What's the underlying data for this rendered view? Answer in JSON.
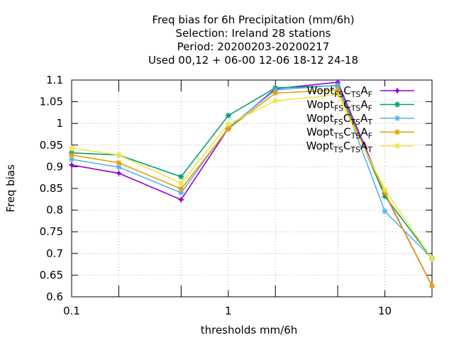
{
  "chart_data": {
    "type": "line",
    "title_lines": [
      "Freq bias  for 6h Precipitation (mm/6h)",
      "Selection: Ireland      28 stations",
      "Period: 20200203-20200217",
      "Used  00,12  + 06-00 12-06 18-12 24-18"
    ],
    "xlabel": "thresholds mm/6h",
    "ylabel": "Freq bias",
    "x_scale": "log",
    "xlim": [
      0.1,
      20
    ],
    "ylim": [
      0.6,
      1.1
    ],
    "x_ticks": [
      {
        "value": 0.1,
        "label": "0.1"
      },
      {
        "value": 1,
        "label": "1"
      },
      {
        "value": 10,
        "label": "10"
      }
    ],
    "x_minor_ticks": [
      0.2,
      0.5,
      2,
      5,
      20
    ],
    "y_ticks": [
      {
        "value": 0.6,
        "label": "0.6"
      },
      {
        "value": 0.65,
        "label": "0.65"
      },
      {
        "value": 0.7,
        "label": "0.7"
      },
      {
        "value": 0.75,
        "label": "0.75"
      },
      {
        "value": 0.8,
        "label": "0.8"
      },
      {
        "value": 0.85,
        "label": "0.85"
      },
      {
        "value": 0.9,
        "label": "0.9"
      },
      {
        "value": 0.95,
        "label": "0.95"
      },
      {
        "value": 1,
        "label": "1"
      },
      {
        "value": 1.05,
        "label": "1.05"
      },
      {
        "value": 1.1,
        "label": "1.1"
      }
    ],
    "grid": true,
    "legend_position": "top-right",
    "x": [
      0.1,
      0.2,
      0.5,
      1,
      2,
      5,
      10,
      20
    ],
    "series": [
      {
        "legend": {
          "base": "Wopt",
          "parts": [
            [
              "FS",
              "sub"
            ],
            [
              "C",
              "big"
            ],
            [
              "TS",
              "sub"
            ],
            [
              "A",
              "big"
            ],
            [
              "F",
              "sub"
            ]
          ]
        },
        "color": "#9400d3",
        "marker": "plus",
        "values": [
          0.904,
          0.885,
          0.824,
          0.988,
          1.08,
          1.095,
          0.838,
          0.625
        ]
      },
      {
        "legend": {
          "base": "Wopt",
          "parts": [
            [
              "FS",
              "sub"
            ],
            [
              "C",
              "big"
            ],
            [
              "TS",
              "sub"
            ],
            [
              "A",
              "big"
            ],
            [
              "F",
              "sub"
            ]
          ]
        },
        "color": "#009e73",
        "marker": "star",
        "values": [
          0.932,
          0.927,
          0.877,
          1.018,
          1.082,
          1.087,
          0.832,
          0.688
        ]
      },
      {
        "legend": {
          "base": "Wopt",
          "parts": [
            [
              "FS",
              "sub"
            ],
            [
              "C",
              "big"
            ],
            [
              "TS",
              "sub"
            ],
            [
              "A",
              "big"
            ],
            [
              "T",
              "sub"
            ]
          ]
        },
        "color": "#56b4e9",
        "marker": "star",
        "values": [
          0.917,
          0.899,
          0.84,
          0.99,
          1.077,
          1.088,
          0.797,
          0.689
        ]
      },
      {
        "legend": {
          "base": "Wopt",
          "parts": [
            [
              "TS",
              "sub"
            ],
            [
              "C",
              "big"
            ],
            [
              "TS",
              "sub"
            ],
            [
              "A",
              "big"
            ],
            [
              "F",
              "sub"
            ]
          ]
        },
        "color": "#e69f00",
        "marker": "star",
        "values": [
          0.927,
          0.909,
          0.849,
          0.987,
          1.07,
          1.077,
          0.84,
          0.625
        ]
      },
      {
        "legend": {
          "base": "Wopt",
          "parts": [
            [
              "TS",
              "sub"
            ],
            [
              "C",
              "big"
            ],
            [
              "TS",
              "sub"
            ],
            [
              "A",
              "big"
            ],
            [
              "T",
              "sub"
            ]
          ]
        },
        "color": "#f0e442",
        "marker": "star",
        "values": [
          0.943,
          0.927,
          0.862,
          0.998,
          1.052,
          1.066,
          0.847,
          0.688
        ]
      }
    ]
  }
}
